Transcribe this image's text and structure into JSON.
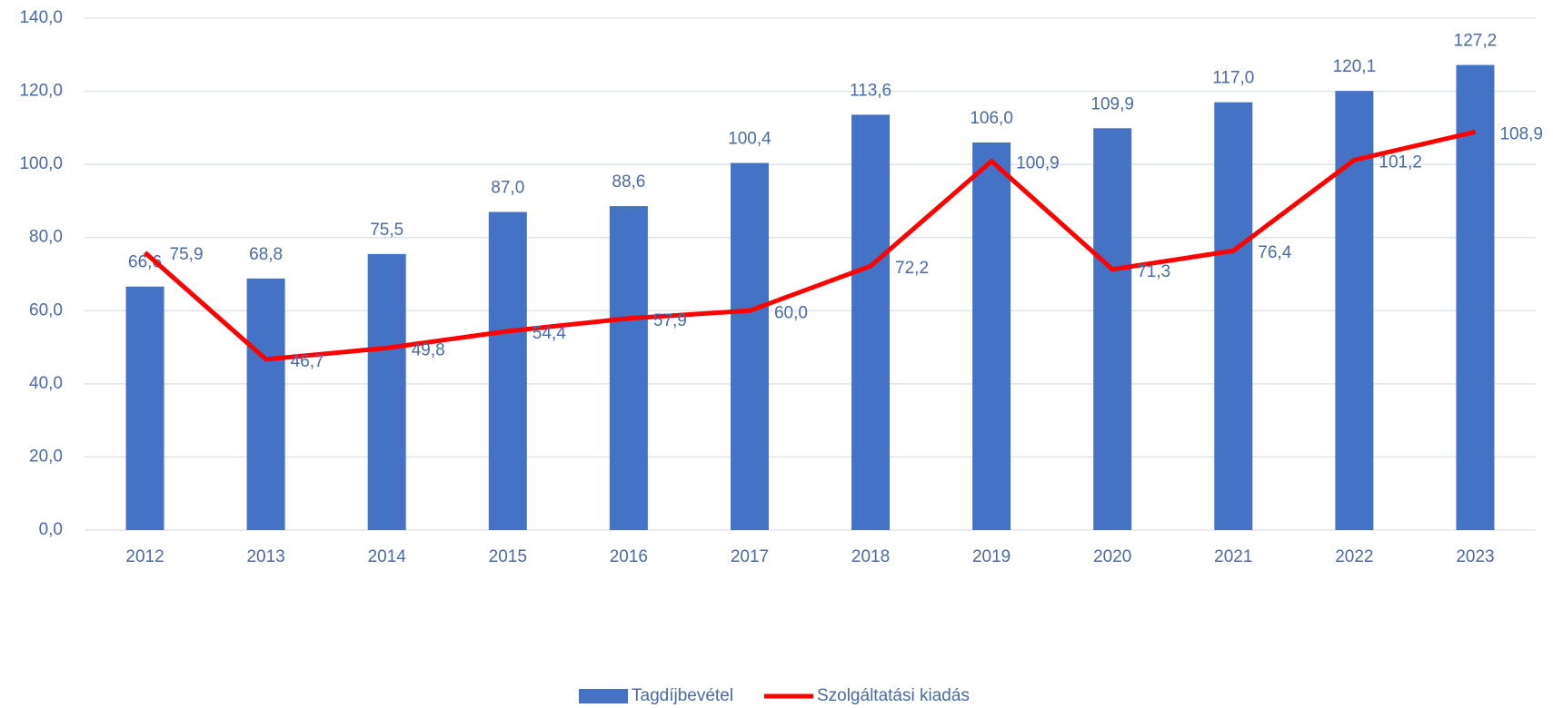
{
  "chart_data": {
    "type": "bar",
    "categories": [
      "2012",
      "2013",
      "2014",
      "2015",
      "2016",
      "2017",
      "2018",
      "2019",
      "2020",
      "2021",
      "2022",
      "2023"
    ],
    "series": [
      {
        "name": "Tagdíjbevétel",
        "type": "bar",
        "color": "#4472c4",
        "values": [
          66.6,
          68.8,
          75.5,
          87.0,
          88.6,
          100.4,
          113.6,
          106.0,
          109.9,
          117.0,
          120.1,
          127.2
        ],
        "value_labels": [
          "66,6",
          "68,8",
          "75,5",
          "87,0",
          "88,6",
          "100,4",
          "113,6",
          "106,0",
          "109,9",
          "117,0",
          "120,1",
          "127,2"
        ]
      },
      {
        "name": "Szolgáltatási kiadás",
        "type": "line",
        "color": "#ff0000",
        "values": [
          75.9,
          46.7,
          49.8,
          54.4,
          57.9,
          60.0,
          72.2,
          100.9,
          71.3,
          76.4,
          101.2,
          108.9
        ],
        "value_labels": [
          "75,9",
          "46,7",
          "49,8",
          "54,4",
          "57,9",
          "60,0",
          "72,2",
          "100,9",
          "71,3",
          "76,4",
          "101,2",
          "108,9"
        ]
      }
    ],
    "ylim": [
      0,
      140
    ],
    "yticks": [
      {
        "value": 0,
        "label": "0,0"
      },
      {
        "value": 20,
        "label": "20,0"
      },
      {
        "value": 40,
        "label": "40,0"
      },
      {
        "value": 60,
        "label": "60,0"
      },
      {
        "value": 80,
        "label": "80,0"
      },
      {
        "value": 100,
        "label": "100,0"
      },
      {
        "value": 120,
        "label": "120,0"
      },
      {
        "value": 140,
        "label": "140,0"
      }
    ],
    "grid": true,
    "legend": "bottom"
  }
}
